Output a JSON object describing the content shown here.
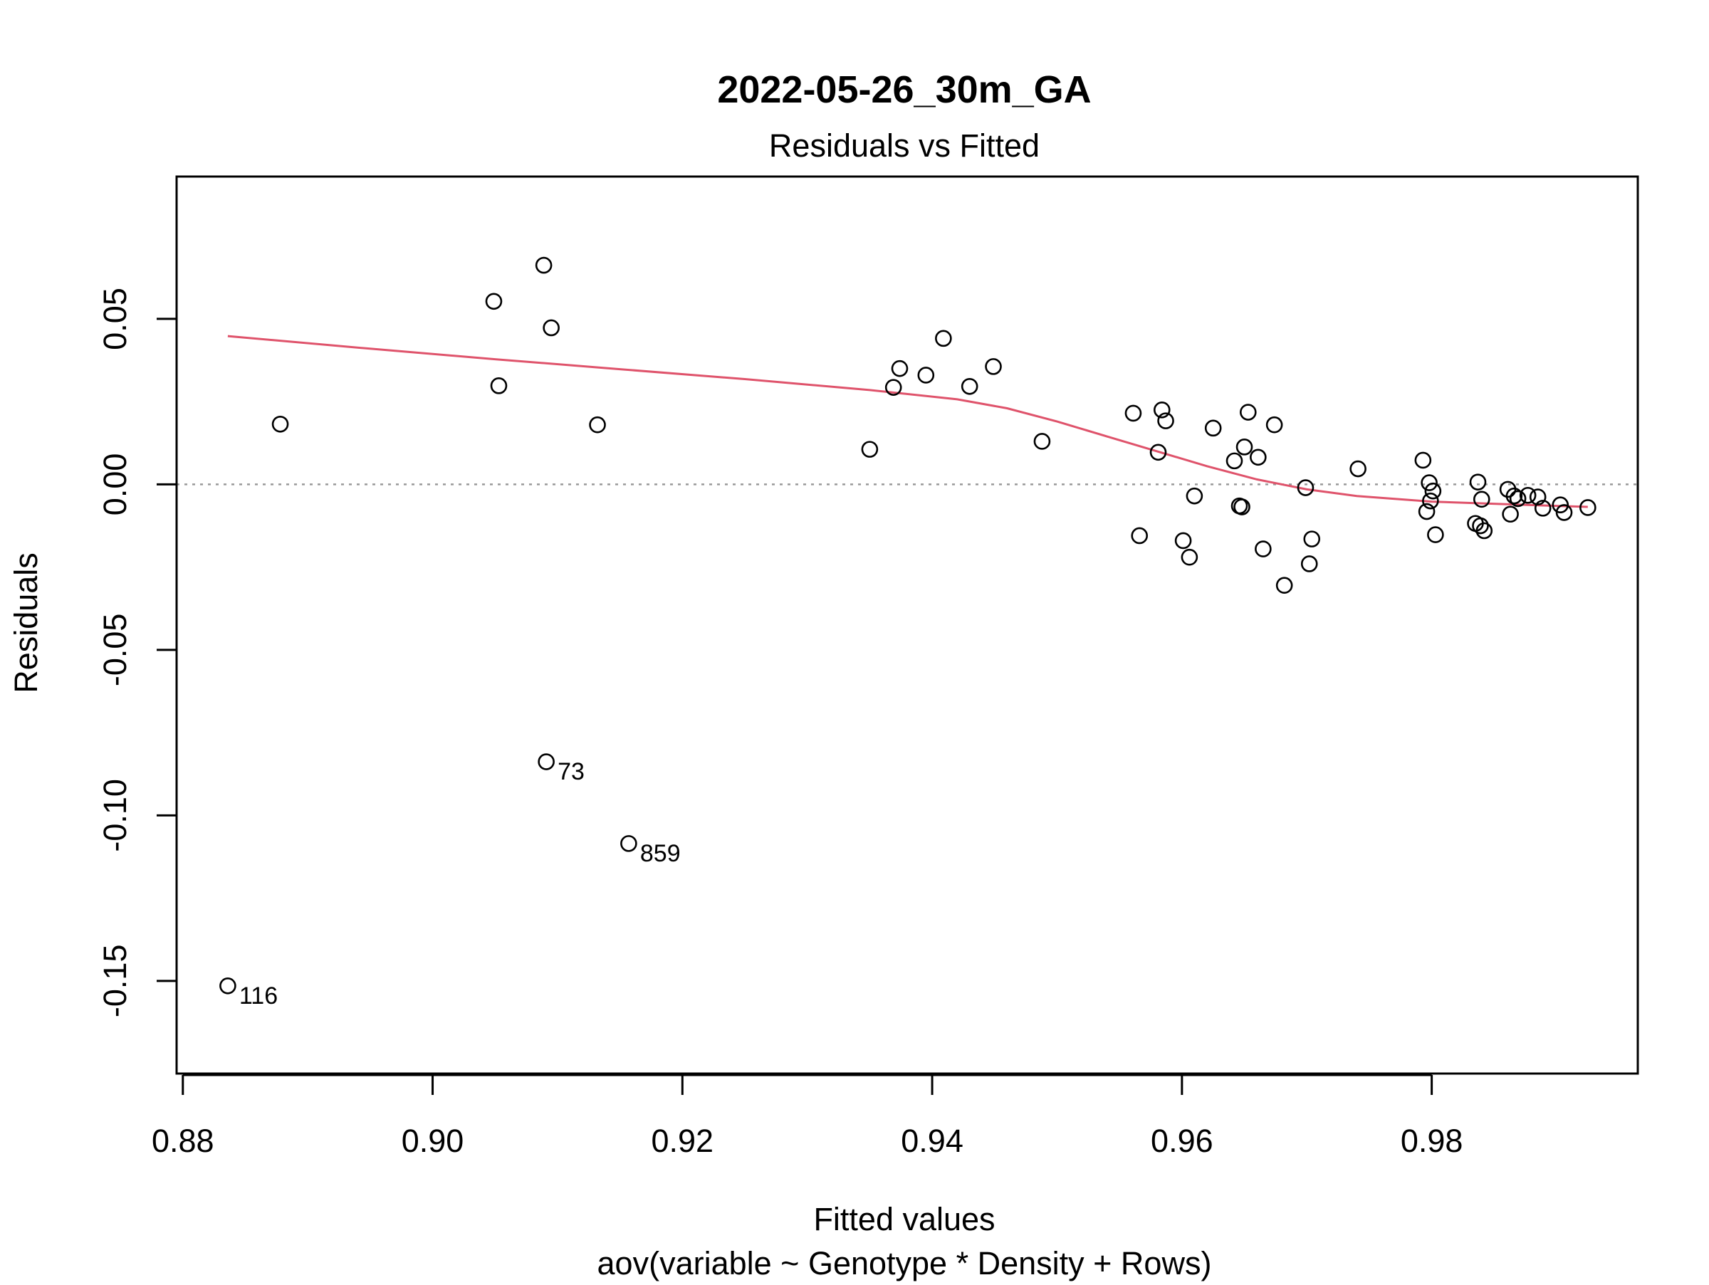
{
  "chart_data": {
    "type": "scatter",
    "title": "2022-05-26_30m_GA",
    "subtitle": "Residuals vs Fitted",
    "xlabel": "Fitted values",
    "xlabel_sub": "aov(variable ~ Genotype * Density + Rows)",
    "ylabel": "Residuals",
    "xlim": [
      0.8795,
      0.9965
    ],
    "ylim": [
      -0.178,
      0.093
    ],
    "x_ticks": [
      0.88,
      0.9,
      0.92,
      0.94,
      0.96,
      0.98
    ],
    "x_tick_labels": [
      "0.88",
      "0.90",
      "0.92",
      "0.94",
      "0.96",
      "0.98"
    ],
    "y_ticks": [
      0.05,
      0.0,
      -0.05,
      -0.1,
      -0.15
    ],
    "y_tick_labels": [
      "0.05",
      "0.00",
      "-0.05",
      "-0.10",
      "-0.15"
    ],
    "reference_line_y": 0.0,
    "colors": {
      "smooth": "#df536b",
      "reference": "#999999",
      "points": "#000000"
    },
    "points": [
      {
        "x": 0.8836,
        "y": -0.1515,
        "label": "116"
      },
      {
        "x": 0.8878,
        "y": 0.0182
      },
      {
        "x": 0.9049,
        "y": 0.0553
      },
      {
        "x": 0.9053,
        "y": 0.0298
      },
      {
        "x": 0.9089,
        "y": 0.0662
      },
      {
        "x": 0.9091,
        "y": -0.0838,
        "label": "73"
      },
      {
        "x": 0.9095,
        "y": 0.0473
      },
      {
        "x": 0.9132,
        "y": 0.018
      },
      {
        "x": 0.9157,
        "y": -0.1085,
        "label": "859"
      },
      {
        "x": 0.935,
        "y": 0.0106
      },
      {
        "x": 0.9369,
        "y": 0.0293
      },
      {
        "x": 0.9374,
        "y": 0.035
      },
      {
        "x": 0.9395,
        "y": 0.033
      },
      {
        "x": 0.9409,
        "y": 0.0441
      },
      {
        "x": 0.943,
        "y": 0.0296
      },
      {
        "x": 0.9449,
        "y": 0.0356
      },
      {
        "x": 0.9488,
        "y": 0.013
      },
      {
        "x": 0.9561,
        "y": 0.0215
      },
      {
        "x": 0.9566,
        "y": -0.0155
      },
      {
        "x": 0.9581,
        "y": 0.0097
      },
      {
        "x": 0.9584,
        "y": 0.0225
      },
      {
        "x": 0.9587,
        "y": 0.0192
      },
      {
        "x": 0.9601,
        "y": -0.017
      },
      {
        "x": 0.9606,
        "y": -0.022
      },
      {
        "x": 0.961,
        "y": -0.0035
      },
      {
        "x": 0.9625,
        "y": 0.017
      },
      {
        "x": 0.9642,
        "y": 0.0071
      },
      {
        "x": 0.9646,
        "y": -0.0065
      },
      {
        "x": 0.9648,
        "y": -0.0068
      },
      {
        "x": 0.965,
        "y": 0.0113
      },
      {
        "x": 0.9653,
        "y": 0.0218
      },
      {
        "x": 0.9661,
        "y": 0.0082
      },
      {
        "x": 0.9665,
        "y": -0.0195
      },
      {
        "x": 0.9674,
        "y": 0.018
      },
      {
        "x": 0.9682,
        "y": -0.0305
      },
      {
        "x": 0.9699,
        "y": -0.001
      },
      {
        "x": 0.9702,
        "y": -0.024
      },
      {
        "x": 0.9704,
        "y": -0.0165
      },
      {
        "x": 0.9741,
        "y": 0.0047
      },
      {
        "x": 0.9793,
        "y": 0.0073
      },
      {
        "x": 0.9796,
        "y": -0.0082
      },
      {
        "x": 0.9798,
        "y": 0.0005
      },
      {
        "x": 0.9799,
        "y": -0.005
      },
      {
        "x": 0.9801,
        "y": -0.002
      },
      {
        "x": 0.9803,
        "y": -0.0152
      },
      {
        "x": 0.9835,
        "y": -0.0118
      },
      {
        "x": 0.9837,
        "y": 0.0007
      },
      {
        "x": 0.9839,
        "y": -0.0125
      },
      {
        "x": 0.984,
        "y": -0.0045
      },
      {
        "x": 0.9842,
        "y": -0.014
      },
      {
        "x": 0.9861,
        "y": -0.0015
      },
      {
        "x": 0.9863,
        "y": -0.009
      },
      {
        "x": 0.9866,
        "y": -0.0035
      },
      {
        "x": 0.9869,
        "y": -0.0043
      },
      {
        "x": 0.9877,
        "y": -0.0033
      },
      {
        "x": 0.9885,
        "y": -0.0038
      },
      {
        "x": 0.9889,
        "y": -0.0072
      },
      {
        "x": 0.9903,
        "y": -0.0062
      },
      {
        "x": 0.9906,
        "y": -0.0085
      },
      {
        "x": 0.9925,
        "y": -0.007
      }
    ],
    "smooth_line": [
      {
        "x": 0.8836,
        "y": 0.0448
      },
      {
        "x": 0.895,
        "y": 0.041
      },
      {
        "x": 0.905,
        "y": 0.0378
      },
      {
        "x": 0.915,
        "y": 0.0348
      },
      {
        "x": 0.925,
        "y": 0.0318
      },
      {
        "x": 0.935,
        "y": 0.0285
      },
      {
        "x": 0.942,
        "y": 0.0257
      },
      {
        "x": 0.946,
        "y": 0.023
      },
      {
        "x": 0.95,
        "y": 0.019
      },
      {
        "x": 0.954,
        "y": 0.0145
      },
      {
        "x": 0.958,
        "y": 0.01
      },
      {
        "x": 0.962,
        "y": 0.0055
      },
      {
        "x": 0.966,
        "y": 0.0015
      },
      {
        "x": 0.97,
        "y": -0.0015
      },
      {
        "x": 0.974,
        "y": -0.0035
      },
      {
        "x": 0.98,
        "y": -0.0052
      },
      {
        "x": 0.986,
        "y": -0.006
      },
      {
        "x": 0.9925,
        "y": -0.0068
      }
    ]
  }
}
